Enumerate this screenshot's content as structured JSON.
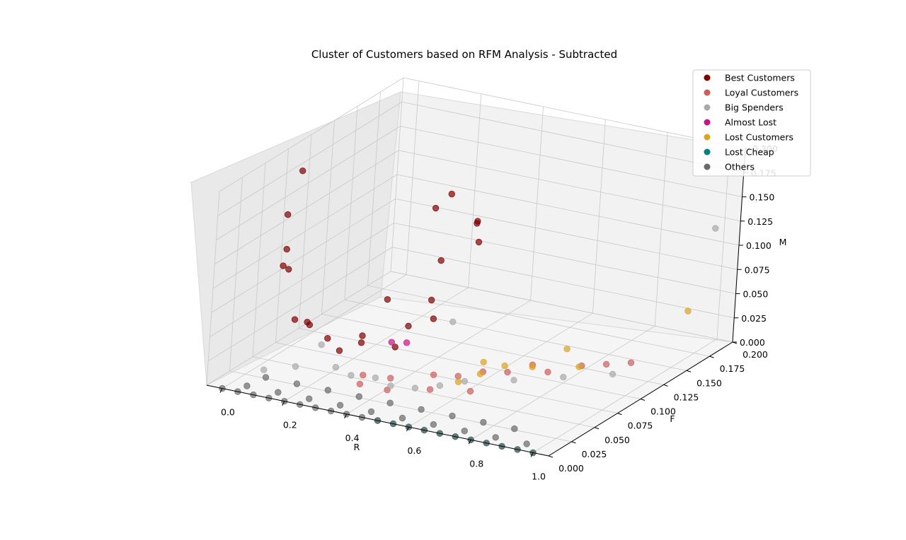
{
  "chart_data": {
    "type": "scatter",
    "title": "Cluster of Customers based on RFM Analysis - Subtracted",
    "xlabel": "R",
    "ylabel": "F",
    "zlabel": "M",
    "xlim": [
      -0.05,
      1.05
    ],
    "ylim": [
      0,
      0.2
    ],
    "zlim": [
      0,
      0.2
    ],
    "x_ticks": [
      "0.0",
      "0.2",
      "0.4",
      "0.6",
      "0.8",
      "1.0"
    ],
    "y_ticks": [
      "0.000",
      "0.025",
      "0.050",
      "0.075",
      "0.100",
      "0.125",
      "0.150",
      "0.175",
      "0.200"
    ],
    "z_ticks": [
      "0.000",
      "0.025",
      "0.050",
      "0.075",
      "0.100",
      "0.125",
      "0.150",
      "0.175",
      "0.200"
    ],
    "legend_position": "top-right",
    "grid": true,
    "series": [
      {
        "name": "Best Customers",
        "color": "#800000",
        "points": [
          [
            0.12,
            0.02,
            0.14
          ],
          [
            0.13,
            0.02,
            0.12
          ],
          [
            0.14,
            0.01,
            0.13
          ],
          [
            0.16,
            0.02,
            0.07
          ],
          [
            0.18,
            0.03,
            0.06
          ],
          [
            0.2,
            0.02,
            0.07
          ],
          [
            0.24,
            0.03,
            0.05
          ],
          [
            0.28,
            0.03,
            0.04
          ],
          [
            0.32,
            0.04,
            0.045
          ],
          [
            0.35,
            0.03,
            0.06
          ],
          [
            0.4,
            0.05,
            0.04
          ],
          [
            0.45,
            0.07,
            0.08
          ],
          [
            0.5,
            0.06,
            0.13
          ],
          [
            0.55,
            0.08,
            0.16
          ],
          [
            0.06,
            0.04,
            0.16
          ],
          [
            0.07,
            0.05,
            0.2
          ],
          [
            0.5,
            0.05,
            0.19
          ],
          [
            0.52,
            0.06,
            0.2
          ],
          [
            0.58,
            0.07,
            0.17
          ],
          [
            0.7,
            0.03,
            0.18
          ],
          [
            0.45,
            0.02,
            0.11
          ],
          [
            0.55,
            0.01,
            0.095
          ],
          [
            0.6,
            0.02,
            0.1
          ]
        ]
      },
      {
        "name": "Loyal Customers",
        "color": "#cd5c5c",
        "points": [
          [
            0.42,
            0.04,
            0.015
          ],
          [
            0.44,
            0.03,
            0.01
          ],
          [
            0.5,
            0.06,
            0.012
          ],
          [
            0.55,
            0.07,
            0.008
          ],
          [
            0.6,
            0.08,
            0.01
          ],
          [
            0.65,
            0.09,
            0.007
          ],
          [
            0.7,
            0.1,
            0.012
          ],
          [
            0.75,
            0.1,
            0.008
          ],
          [
            0.8,
            0.12,
            0.006
          ],
          [
            0.85,
            0.13,
            0.005
          ],
          [
            0.9,
            0.14,
            0.004
          ],
          [
            0.52,
            0.05,
            0.004
          ],
          [
            0.62,
            0.06,
            0.003
          ],
          [
            0.36,
            0.03,
            0.02
          ],
          [
            0.38,
            0.02,
            0.018
          ]
        ]
      },
      {
        "name": "Big Spenders",
        "color": "#a9a9a9",
        "points": [
          [
            0.1,
            0.01,
            0.02
          ],
          [
            0.2,
            0.01,
            0.03
          ],
          [
            0.3,
            0.02,
            0.03
          ],
          [
            0.35,
            0.02,
            0.025
          ],
          [
            0.4,
            0.03,
            0.02
          ],
          [
            0.45,
            0.03,
            0.015
          ],
          [
            0.5,
            0.04,
            0.01
          ],
          [
            0.55,
            0.05,
            0.01
          ],
          [
            0.6,
            0.06,
            0.012
          ],
          [
            0.7,
            0.08,
            0.008
          ],
          [
            0.8,
            0.1,
            0.006
          ],
          [
            0.9,
            0.12,
            0.004
          ],
          [
            1.0,
            0.19,
            0.12
          ],
          [
            0.55,
            0.06,
            0.07
          ],
          [
            0.25,
            0.02,
            0.05
          ]
        ]
      },
      {
        "name": "Almost Lost",
        "color": "#c71585",
        "points": [
          [
            0.5,
            0.01,
            0.075
          ],
          [
            0.52,
            0.02,
            0.07
          ]
        ]
      },
      {
        "name": "Lost Customers",
        "color": "#daa520",
        "points": [
          [
            0.6,
            0.08,
            0.02
          ],
          [
            0.62,
            0.07,
            0.015
          ],
          [
            0.58,
            0.06,
            0.01
          ],
          [
            0.64,
            0.09,
            0.013
          ],
          [
            0.75,
            0.12,
            0.02
          ],
          [
            0.82,
            0.11,
            0.012
          ],
          [
            0.93,
            0.19,
            0.03
          ],
          [
            0.7,
            0.1,
            0.01
          ]
        ]
      },
      {
        "name": "Lost Cheap",
        "color": "#008080",
        "points": [
          [
            0.5,
            0.0,
            0.0
          ],
          [
            0.6,
            0.0,
            0.0
          ],
          [
            0.7,
            0.0,
            0.0
          ],
          [
            0.8,
            0.0,
            0.0
          ],
          [
            0.9,
            0.0,
            0.0
          ],
          [
            1.0,
            0.0,
            0.0
          ],
          [
            0.95,
            0.0,
            0.0
          ],
          [
            0.85,
            0.0,
            0.0
          ],
          [
            0.75,
            0.0,
            0.0
          ],
          [
            0.65,
            0.0,
            0.0
          ],
          [
            0.55,
            0.0,
            0.0
          ]
        ]
      },
      {
        "name": "Others",
        "color": "#696969",
        "points": [
          [
            0.0,
            0.0,
            0.0
          ],
          [
            0.05,
            0.0,
            0.0
          ],
          [
            0.1,
            0.0,
            0.0
          ],
          [
            0.15,
            0.0,
            0.0
          ],
          [
            0.2,
            0.0,
            0.0
          ],
          [
            0.25,
            0.0,
            0.0
          ],
          [
            0.3,
            0.0,
            0.0
          ],
          [
            0.35,
            0.0,
            0.0
          ],
          [
            0.4,
            0.0,
            0.0
          ],
          [
            0.45,
            0.0,
            0.0
          ],
          [
            0.5,
            0.0,
            0.0
          ],
          [
            0.55,
            0.0,
            0.0
          ],
          [
            0.6,
            0.0,
            0.0
          ],
          [
            0.65,
            0.0,
            0.0
          ],
          [
            0.7,
            0.0,
            0.0
          ],
          [
            0.75,
            0.0,
            0.0
          ],
          [
            0.8,
            0.0,
            0.0
          ],
          [
            0.85,
            0.0,
            0.0
          ],
          [
            0.9,
            0.0,
            0.0
          ],
          [
            0.95,
            0.0,
            0.0
          ],
          [
            1.0,
            0.0,
            0.0
          ],
          [
            0.05,
            0.01,
            0.0
          ],
          [
            0.15,
            0.01,
            0.0
          ],
          [
            0.25,
            0.01,
            0.0
          ],
          [
            0.35,
            0.01,
            0.0
          ],
          [
            0.45,
            0.01,
            0.0
          ],
          [
            0.55,
            0.01,
            0.0
          ],
          [
            0.65,
            0.01,
            0.0
          ],
          [
            0.75,
            0.01,
            0.0
          ],
          [
            0.85,
            0.01,
            0.0
          ],
          [
            0.95,
            0.01,
            0.0
          ],
          [
            0.08,
            0.02,
            0.005
          ],
          [
            0.18,
            0.02,
            0.005
          ],
          [
            0.28,
            0.02,
            0.005
          ],
          [
            0.38,
            0.02,
            0.005
          ],
          [
            0.48,
            0.02,
            0.005
          ],
          [
            0.58,
            0.02,
            0.005
          ],
          [
            0.68,
            0.02,
            0.005
          ],
          [
            0.78,
            0.02,
            0.005
          ],
          [
            0.88,
            0.02,
            0.005
          ]
        ]
      }
    ]
  }
}
